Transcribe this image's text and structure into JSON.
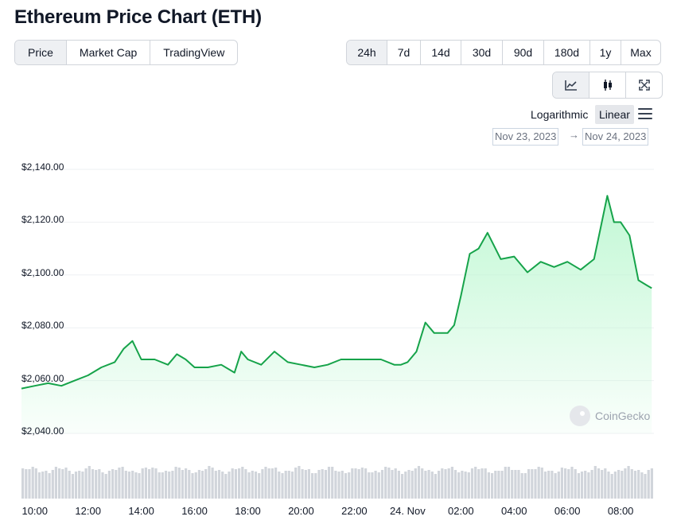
{
  "header": {
    "title": "Ethereum Price Chart (ETH)"
  },
  "data_tabs": [
    {
      "label": "Price",
      "active": true
    },
    {
      "label": "Market Cap",
      "active": false
    },
    {
      "label": "TradingView",
      "active": false
    }
  ],
  "ranges": [
    {
      "label": "24h",
      "active": true
    },
    {
      "label": "7d",
      "active": false
    },
    {
      "label": "14d",
      "active": false
    },
    {
      "label": "30d",
      "active": false
    },
    {
      "label": "90d",
      "active": false
    },
    {
      "label": "180d",
      "active": false
    },
    {
      "label": "1y",
      "active": false
    },
    {
      "label": "Max",
      "active": false
    }
  ],
  "view_icons": [
    "line-chart-icon",
    "candlestick-icon",
    "fullscreen-icon"
  ],
  "scale": {
    "logarithmic": "Logarithmic",
    "linear": "Linear",
    "active": "Linear",
    "menu_icon": "hamburger-menu-icon"
  },
  "date_range": {
    "from": "Nov 23, 2023",
    "arrow": "→",
    "to": "Nov 24, 2023"
  },
  "watermark": {
    "text": "CoinGecko",
    "icon": "coingecko-logo-icon"
  },
  "colors": {
    "line": "#16a34a",
    "fill": "#bbf7d0",
    "volume": "#d1d5db",
    "active_bg": "#eef0f3"
  },
  "chart_data": {
    "type": "area",
    "ylim": [
      2040,
      2140
    ],
    "yticks": [
      "$2,040.00",
      "$2,060.00",
      "$2,080.00",
      "$2,100.00",
      "$2,120.00",
      "$2,140.00"
    ],
    "xticks": [
      "10:00",
      "12:00",
      "14:00",
      "16:00",
      "18:00",
      "20:00",
      "22:00",
      "24. Nov",
      "02:00",
      "04:00",
      "06:00",
      "08:00"
    ],
    "series": [
      {
        "x": [
          "2023-11-23T09:30",
          "2023-11-23T10:00",
          "2023-11-23T10:30",
          "2023-11-23T11:00",
          "2023-11-23T11:30",
          "2023-11-23T12:00",
          "2023-11-23T12:30",
          "2023-11-23T13:00",
          "2023-11-23T13:20",
          "2023-11-23T13:40",
          "2023-11-23T14:00",
          "2023-11-23T14:30",
          "2023-11-23T15:00",
          "2023-11-23T15:20",
          "2023-11-23T15:40",
          "2023-11-23T16:00",
          "2023-11-23T16:30",
          "2023-11-23T17:00",
          "2023-11-23T17:30",
          "2023-11-23T17:45",
          "2023-11-23T18:00",
          "2023-11-23T18:30",
          "2023-11-23T19:00",
          "2023-11-23T19:30",
          "2023-11-23T20:00",
          "2023-11-23T20:30",
          "2023-11-23T21:00",
          "2023-11-23T21:30",
          "2023-11-23T22:00",
          "2023-11-23T22:30",
          "2023-11-23T23:00",
          "2023-11-23T23:30",
          "2023-11-23T23:45",
          "2023-11-24T00:00",
          "2023-11-24T00:20",
          "2023-11-24T00:40",
          "2023-11-24T01:00",
          "2023-11-24T01:30",
          "2023-11-24T01:45",
          "2023-11-24T02:00",
          "2023-11-24T02:20",
          "2023-11-24T02:40",
          "2023-11-24T03:00",
          "2023-11-24T03:30",
          "2023-11-24T04:00",
          "2023-11-24T04:30",
          "2023-11-24T05:00",
          "2023-11-24T05:30",
          "2023-11-24T06:00",
          "2023-11-24T06:30",
          "2023-11-24T07:00",
          "2023-11-24T07:15",
          "2023-11-24T07:30",
          "2023-11-24T07:45",
          "2023-11-24T08:00",
          "2023-11-24T08:20",
          "2023-11-24T08:40",
          "2023-11-24T09:00",
          "2023-11-24T09:10"
        ],
        "y": [
          2057,
          2058,
          2059,
          2058,
          2060,
          2062,
          2065,
          2067,
          2072,
          2075,
          2068,
          2068,
          2066,
          2070,
          2068,
          2065,
          2065,
          2066,
          2063,
          2071,
          2068,
          2066,
          2071,
          2067,
          2066,
          2065,
          2066,
          2068,
          2068,
          2068,
          2068,
          2066,
          2066,
          2067,
          2071,
          2082,
          2078,
          2078,
          2081,
          2092,
          2108,
          2110,
          2116,
          2106,
          2107,
          2101,
          2105,
          2103,
          2105,
          2102,
          2106,
          2118,
          2130,
          2120,
          2120,
          2115,
          2098,
          2096,
          2095
        ]
      }
    ],
    "volume": "bars"
  }
}
